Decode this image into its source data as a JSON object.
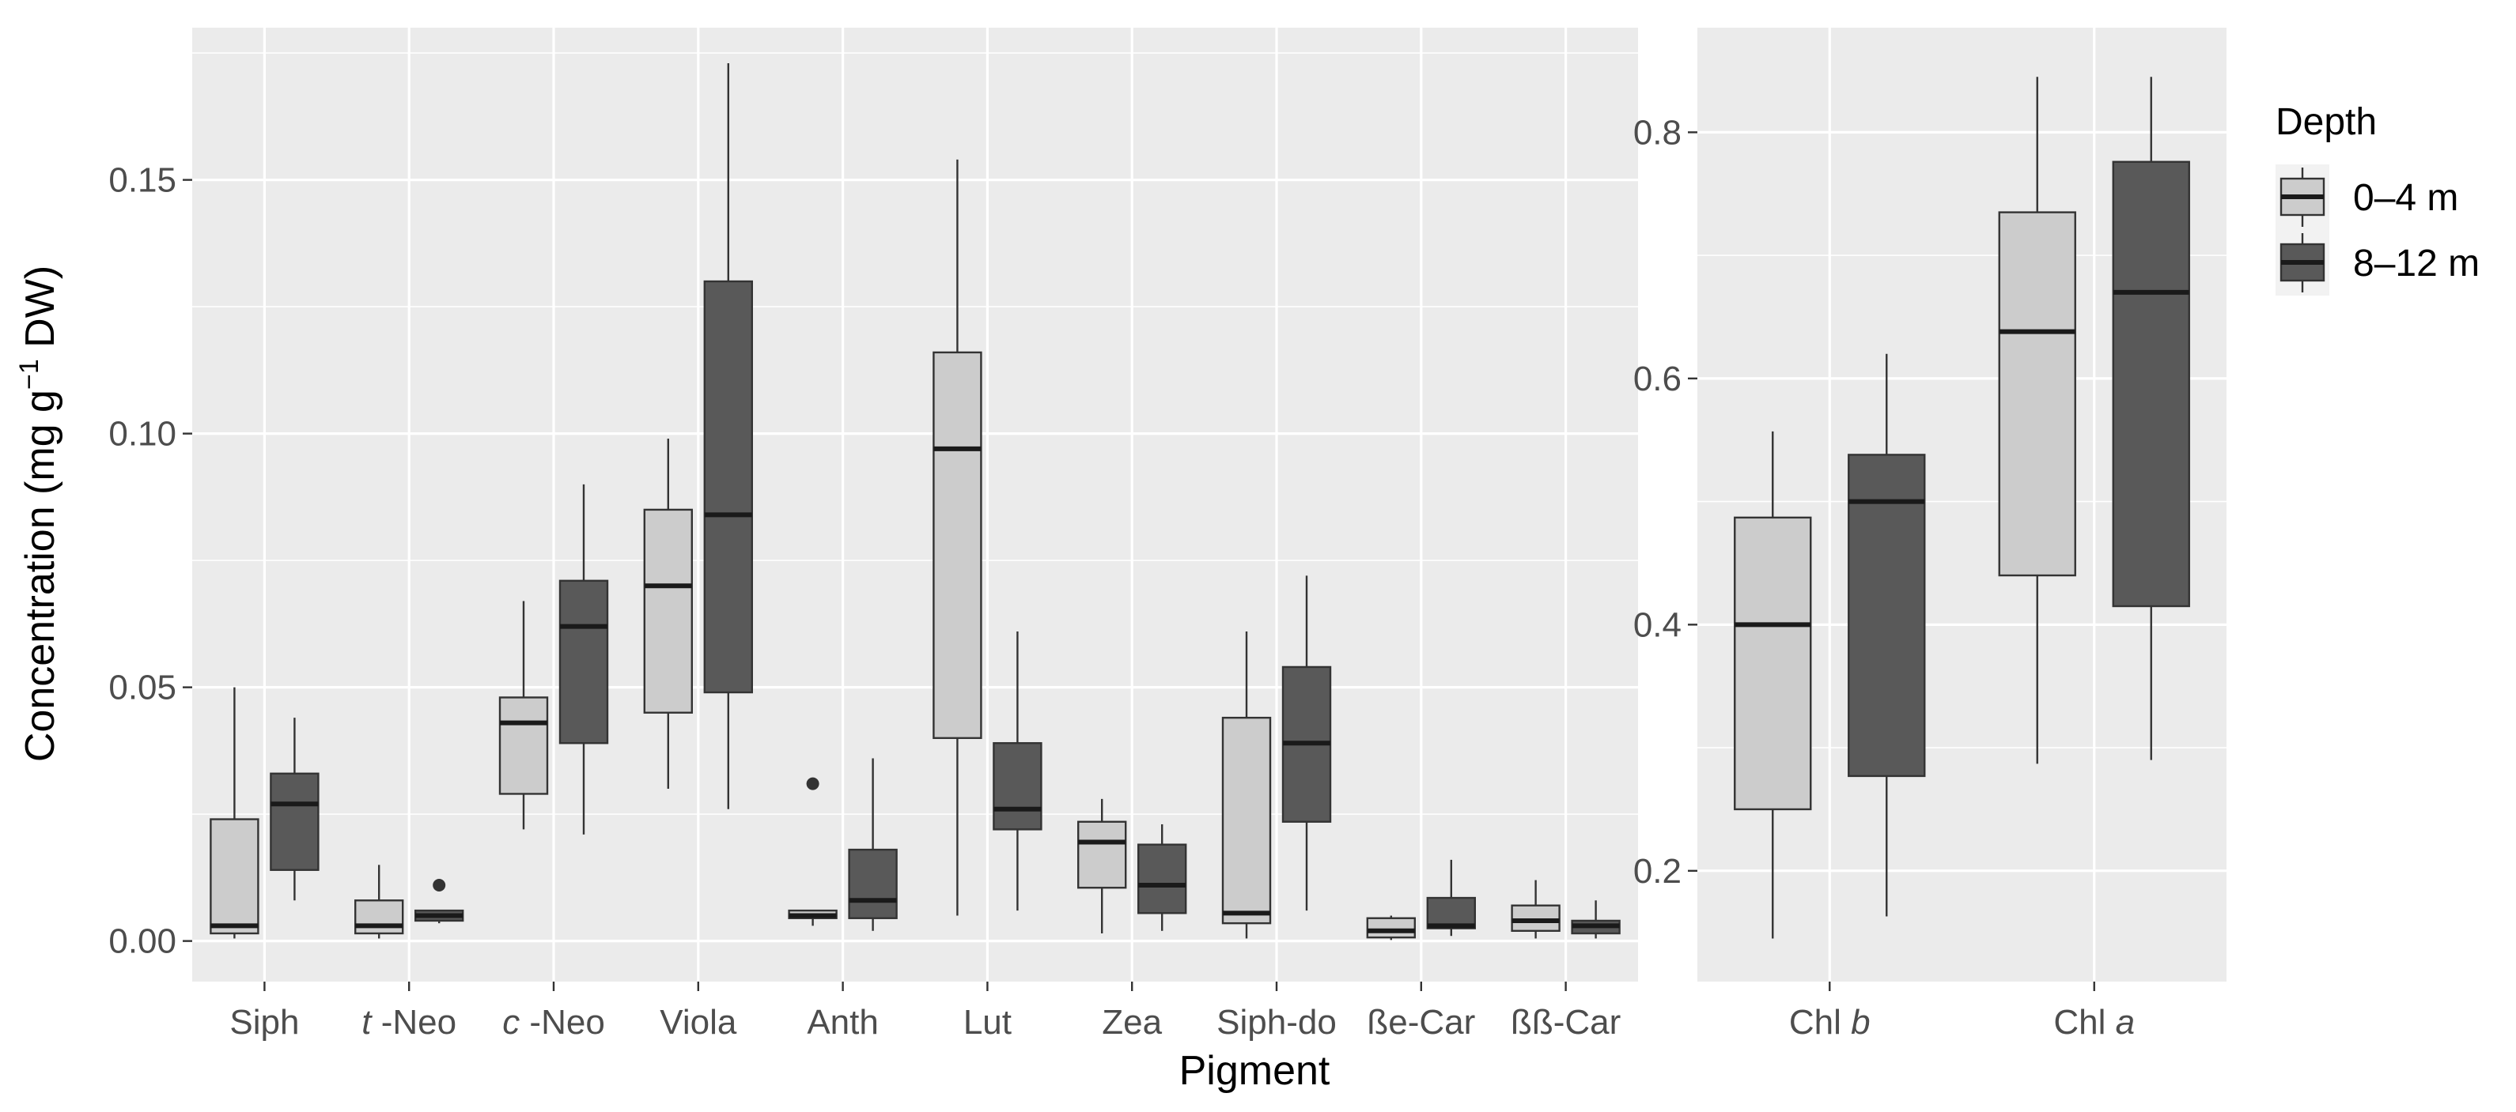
{
  "chart_data": [
    {
      "type": "boxplot",
      "panel": "carotenoids",
      "xlabel": "Pigment",
      "ylabel": "Concentration (mg g⁻¹ DW)",
      "ylim": [
        -0.008,
        0.18
      ],
      "yticks": [
        0.0,
        0.05,
        0.1,
        0.15
      ],
      "ytick_labels": [
        "0.00",
        "0.05",
        "0.10",
        "0.15"
      ],
      "categories": [
        {
          "label": "Siph",
          "italic_prefix": ""
        },
        {
          "label": "-Neo",
          "italic_prefix": "t"
        },
        {
          "label": "-Neo",
          "italic_prefix": "c"
        },
        {
          "label": "Viola",
          "italic_prefix": ""
        },
        {
          "label": "Anth",
          "italic_prefix": ""
        },
        {
          "label": "Lut",
          "italic_prefix": ""
        },
        {
          "label": "Zea",
          "italic_prefix": ""
        },
        {
          "label": "Siph-do",
          "italic_prefix": ""
        },
        {
          "label": "ße-Car",
          "italic_prefix": ""
        },
        {
          "label": "ßß-Car",
          "italic_prefix": ""
        }
      ],
      "series": [
        {
          "name": "0–4 m",
          "boxes": [
            {
              "lower": 0.0005,
              "q1": 0.0015,
              "median": 0.003,
              "q3": 0.024,
              "upper": 0.05,
              "outliers": []
            },
            {
              "lower": 0.0005,
              "q1": 0.0015,
              "median": 0.003,
              "q3": 0.008,
              "upper": 0.015,
              "outliers": []
            },
            {
              "lower": 0.022,
              "q1": 0.029,
              "median": 0.043,
              "q3": 0.048,
              "upper": 0.067,
              "outliers": []
            },
            {
              "lower": 0.03,
              "q1": 0.045,
              "median": 0.07,
              "q3": 0.085,
              "upper": 0.099,
              "outliers": []
            },
            {
              "lower": 0.003,
              "q1": 0.0045,
              "median": 0.005,
              "q3": 0.006,
              "upper": 0.006,
              "outliers": [
                0.031
              ]
            },
            {
              "lower": 0.005,
              "q1": 0.04,
              "median": 0.097,
              "q3": 0.116,
              "upper": 0.154,
              "outliers": []
            },
            {
              "lower": 0.0015,
              "q1": 0.0105,
              "median": 0.0195,
              "q3": 0.0235,
              "upper": 0.028,
              "outliers": []
            },
            {
              "lower": 0.0005,
              "q1": 0.0035,
              "median": 0.0055,
              "q3": 0.044,
              "upper": 0.061,
              "outliers": []
            },
            {
              "lower": 0.0002,
              "q1": 0.0007,
              "median": 0.002,
              "q3": 0.0045,
              "upper": 0.005,
              "outliers": []
            },
            {
              "lower": 0.0005,
              "q1": 0.002,
              "median": 0.004,
              "q3": 0.007,
              "upper": 0.012,
              "outliers": []
            }
          ]
        },
        {
          "name": "8–12 m",
          "boxes": [
            {
              "lower": 0.008,
              "q1": 0.014,
              "median": 0.027,
              "q3": 0.033,
              "upper": 0.044,
              "outliers": []
            },
            {
              "lower": 0.0035,
              "q1": 0.004,
              "median": 0.005,
              "q3": 0.006,
              "upper": 0.006,
              "outliers": [
                0.011
              ]
            },
            {
              "lower": 0.021,
              "q1": 0.039,
              "median": 0.062,
              "q3": 0.071,
              "upper": 0.09,
              "outliers": []
            },
            {
              "lower": 0.026,
              "q1": 0.049,
              "median": 0.084,
              "q3": 0.13,
              "upper": 0.173,
              "outliers": []
            },
            {
              "lower": 0.002,
              "q1": 0.0045,
              "median": 0.008,
              "q3": 0.018,
              "upper": 0.036,
              "outliers": []
            },
            {
              "lower": 0.006,
              "q1": 0.022,
              "median": 0.026,
              "q3": 0.039,
              "upper": 0.061,
              "outliers": []
            },
            {
              "lower": 0.002,
              "q1": 0.0055,
              "median": 0.011,
              "q3": 0.019,
              "upper": 0.023,
              "outliers": []
            },
            {
              "lower": 0.006,
              "q1": 0.0235,
              "median": 0.039,
              "q3": 0.054,
              "upper": 0.072,
              "outliers": []
            },
            {
              "lower": 0.001,
              "q1": 0.0025,
              "median": 0.003,
              "q3": 0.0085,
              "upper": 0.016,
              "outliers": []
            },
            {
              "lower": 0.0005,
              "q1": 0.0015,
              "median": 0.003,
              "q3": 0.004,
              "upper": 0.008,
              "outliers": []
            }
          ]
        }
      ]
    },
    {
      "type": "boxplot",
      "panel": "chlorophylls",
      "ylim": [
        0.11,
        0.885
      ],
      "yticks": [
        0.2,
        0.4,
        0.6,
        0.8
      ],
      "ytick_labels": [
        "0.2",
        "0.4",
        "0.6",
        "0.8"
      ],
      "categories": [
        {
          "label": "Chl ",
          "italic_suffix": "b"
        },
        {
          "label": "Chl ",
          "italic_suffix": "a"
        }
      ],
      "series": [
        {
          "name": "0–4 m",
          "boxes": [
            {
              "lower": 0.145,
              "q1": 0.25,
              "median": 0.4,
              "q3": 0.487,
              "upper": 0.557,
              "outliers": []
            },
            {
              "lower": 0.287,
              "q1": 0.44,
              "median": 0.638,
              "q3": 0.735,
              "upper": 0.845,
              "outliers": []
            }
          ]
        },
        {
          "name": "8–12 m",
          "boxes": [
            {
              "lower": 0.163,
              "q1": 0.277,
              "median": 0.5,
              "q3": 0.538,
              "upper": 0.62,
              "outliers": []
            },
            {
              "lower": 0.29,
              "q1": 0.415,
              "median": 0.67,
              "q3": 0.776,
              "upper": 0.845,
              "outliers": []
            }
          ]
        }
      ]
    }
  ],
  "legend": {
    "title": "Depth",
    "entries": [
      {
        "label": "0–4 m",
        "fill": "#cccccc"
      },
      {
        "label": "8–12 m",
        "fill": "#595959"
      }
    ]
  },
  "colors": {
    "series": [
      "#cccccc",
      "#595959"
    ],
    "outline": "#333333",
    "panel": "#ebebeb",
    "grid": "#ffffff"
  }
}
